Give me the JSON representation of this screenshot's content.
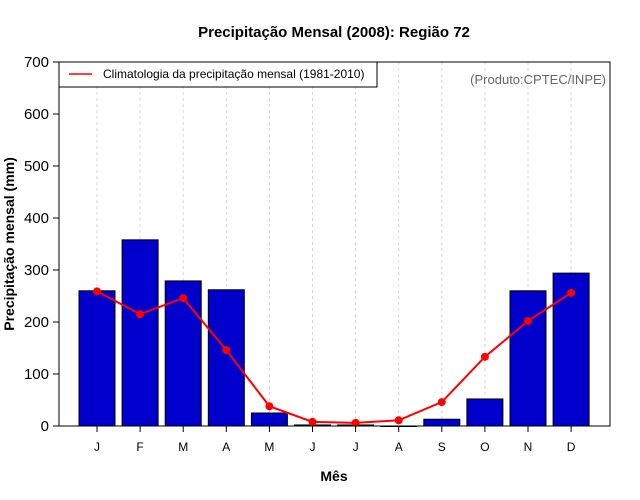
{
  "chart_data": {
    "type": "bar",
    "title": "Precipitação Mensal (2008): Região 72",
    "xlabel": "Mês",
    "ylabel": "Precipitação mensal (mm)",
    "ylim": [
      0,
      700
    ],
    "yticks": [
      0,
      100,
      200,
      300,
      400,
      500,
      600,
      700
    ],
    "categories": [
      "J",
      "F",
      "M",
      "A",
      "M",
      "J",
      "J",
      "A",
      "S",
      "O",
      "N",
      "D"
    ],
    "grid": "vertical-dashed",
    "series": [
      {
        "name": "Precipitação mensal (2008)",
        "type": "bar",
        "color": "#0000CD",
        "values": [
          260,
          358,
          279,
          262,
          25,
          2,
          2,
          0,
          13,
          52,
          260,
          294
        ]
      },
      {
        "name": "Climatologia da precipitação mensal (1981-2010)",
        "type": "line",
        "color": "#FF0000",
        "values": [
          259,
          215,
          246,
          146,
          38,
          8,
          6,
          11,
          46,
          133,
          202,
          256
        ]
      }
    ],
    "legend": {
      "placement": "top-left",
      "entries": [
        "Climatologia da precipitação mensal (1981-2010)"
      ]
    },
    "annotation": "(Produto:CPTEC/INPE)"
  }
}
